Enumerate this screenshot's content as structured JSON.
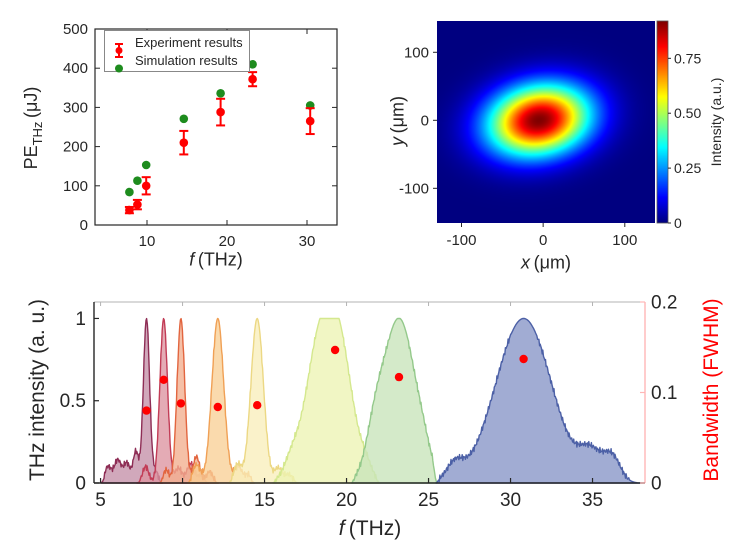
{
  "figure": {
    "background": "#ffffff",
    "text_color": "#262626"
  },
  "chart_data": [
    {
      "type": "scatter",
      "panel": "top-left",
      "xlabel": {
        "var": "f",
        "unit": "(THz)"
      },
      "ylabel": {
        "prefix": "PE",
        "sub": "THz",
        "unit": "(μJ)"
      },
      "xlim": [
        3.5,
        33.75
      ],
      "ylim": [
        0,
        500
      ],
      "xticks": [
        10,
        20,
        30
      ],
      "yticks": [
        0,
        100,
        200,
        300,
        400,
        500
      ],
      "legend": [
        {
          "label": "Experiment results",
          "color": "#ff0000",
          "marker": "errorbar-dot"
        },
        {
          "label": "Simulation results",
          "color": "#1e8c1e",
          "marker": "dot"
        }
      ],
      "f": [
        7.8,
        8.8,
        9.9,
        14.6,
        19.2,
        23.2,
        30.4
      ],
      "series": [
        {
          "name": "Experiment results",
          "color": "#ff0000",
          "values": [
            38,
            52,
            100,
            210,
            288,
            372,
            265
          ],
          "errors": [
            8,
            12,
            22,
            30,
            34,
            18,
            33
          ]
        },
        {
          "name": "Simulation results",
          "color": "#1e8c1e",
          "values": [
            84,
            113,
            153,
            271,
            336,
            410,
            305
          ]
        }
      ]
    },
    {
      "type": "heatmap",
      "panel": "top-right",
      "xlabel": {
        "var": "x",
        "unit": "(μm)"
      },
      "ylabel": {
        "var": "y",
        "unit": "(μm)"
      },
      "xlim": [
        -130,
        137
      ],
      "ylim": [
        -151,
        146
      ],
      "xticks": [
        -100,
        0,
        100
      ],
      "yticks": [
        -100,
        0,
        100
      ],
      "colormap": "jet",
      "colorbar": {
        "label": "Intensity (a.u.)",
        "tick_values": [
          0,
          0.25,
          0.5,
          0.75
        ],
        "tick_labels": [
          "0",
          "0.25",
          "0.50",
          "0.75"
        ],
        "vmax": 0.92
      },
      "gaussian_beam": {
        "x0_um": -5,
        "y0_um": 0,
        "sigma_major_um": 44,
        "sigma_minor_um": 35,
        "angle_deg": 20,
        "amplitude": 0.92
      }
    },
    {
      "type": "area",
      "panel": "bottom",
      "xlabel": {
        "var": "f",
        "unit": "(THz)"
      },
      "ylabel_left": "THz intensity (a. u.)",
      "ylabel_right": "Bandwidth (FWHM)",
      "right_axis_color": "#ff0000",
      "right_axis_line_color": "#ffb6b6",
      "xlim": [
        4.6,
        38.2
      ],
      "ylim_left": [
        0,
        1.1
      ],
      "ylim_right": [
        0,
        0.2
      ],
      "xticks": [
        5,
        10,
        15,
        20,
        25,
        30,
        35
      ],
      "yticks_left": [
        0,
        0.5,
        1
      ],
      "yticks_right": [
        0,
        0.1,
        0.2
      ],
      "peaks": [
        {
          "center": 7.8,
          "fwhm": 0.45,
          "height": 1,
          "span": [
            5.05,
            8.8
          ],
          "fill": "#c490a8",
          "stroke": "#8e2d55",
          "bumps": [
            [
              5.45,
              0.1,
              0.5
            ],
            [
              6.05,
              0.14,
              0.5
            ],
            [
              6.6,
              0.12,
              0.45
            ],
            [
              7.15,
              0.19,
              0.4
            ],
            [
              8.35,
              0.07,
              0.4
            ]
          ]
        },
        {
          "center": 8.85,
          "fwhm": 0.55,
          "height": 1,
          "span": [
            7.2,
            11.6
          ],
          "fill": "#dc93a0",
          "stroke": "#c23c56",
          "bumps": [
            [
              7.75,
              0.1,
              0.45
            ],
            [
              9.75,
              0.09,
              0.5
            ],
            [
              10.5,
              0.12,
              0.55
            ],
            [
              11.15,
              0.05,
              0.4
            ]
          ]
        },
        {
          "center": 9.9,
          "fwhm": 0.55,
          "height": 1,
          "span": [
            8.55,
            12.2
          ],
          "fill": "#f2ae8e",
          "stroke": "#e2653f",
          "bumps": [
            [
              9.0,
              0.08,
              0.4
            ],
            [
              10.85,
              0.16,
              0.5
            ],
            [
              11.65,
              0.07,
              0.45
            ]
          ]
        },
        {
          "center": 12.15,
          "fwhm": 0.85,
          "height": 1,
          "span": [
            10.3,
            14.4
          ],
          "fill": "#f8cf96",
          "stroke": "#f0a055",
          "bumps": [
            [
              10.85,
              0.11,
              0.55
            ],
            [
              13.4,
              0.1,
              0.55
            ],
            [
              14.0,
              0.05,
              0.45
            ]
          ]
        },
        {
          "center": 14.55,
          "fwhm": 0.9,
          "height": 1,
          "span": [
            12.8,
            17.1
          ],
          "fill": "#f8eebb",
          "stroke": "#ecd884",
          "bumps": [
            [
              13.35,
              0.11,
              0.55
            ],
            [
              15.85,
              0.09,
              0.6
            ],
            [
              16.5,
              0.05,
              0.5
            ]
          ]
        },
        {
          "center": 19.3,
          "fwhm": 2.2,
          "height": 1,
          "span": [
            15.5,
            22.0
          ],
          "fill": "#edf4b3",
          "stroke": "#d4e88e",
          "bumps": [
            [
              18.0,
              0.45,
              1.6
            ],
            [
              16.7,
              0.15,
              1.2
            ],
            [
              21.2,
              0.06,
              0.8
            ]
          ]
        },
        {
          "center": 23.2,
          "fwhm": 2.4,
          "height": 1,
          "span": [
            20.3,
            25.5
          ],
          "fill": "#c8e4ba",
          "stroke": "#94c98b",
          "bumps": [
            [
              21.7,
              0.18,
              1.2
            ],
            [
              24.7,
              0.06,
              0.9
            ]
          ]
        },
        {
          "center": 30.8,
          "fwhm": 4.0,
          "height": 1,
          "span": [
            25.45,
            37.9
          ],
          "fill": "#8795c6",
          "stroke": "#4c60a6",
          "bumps": [
            [
              26.6,
              0.1,
              1.2
            ],
            [
              34.9,
              0.17,
              1.6
            ],
            [
              36.2,
              0.15,
              1.2
            ]
          ]
        }
      ],
      "bandwidth": {
        "color": "#ff0000",
        "f": [
          7.8,
          8.85,
          9.9,
          12.15,
          14.55,
          19.3,
          23.2,
          30.8
        ],
        "values": [
          0.08,
          0.114,
          0.088,
          0.084,
          0.086,
          0.147,
          0.117,
          0.137
        ]
      }
    }
  ]
}
